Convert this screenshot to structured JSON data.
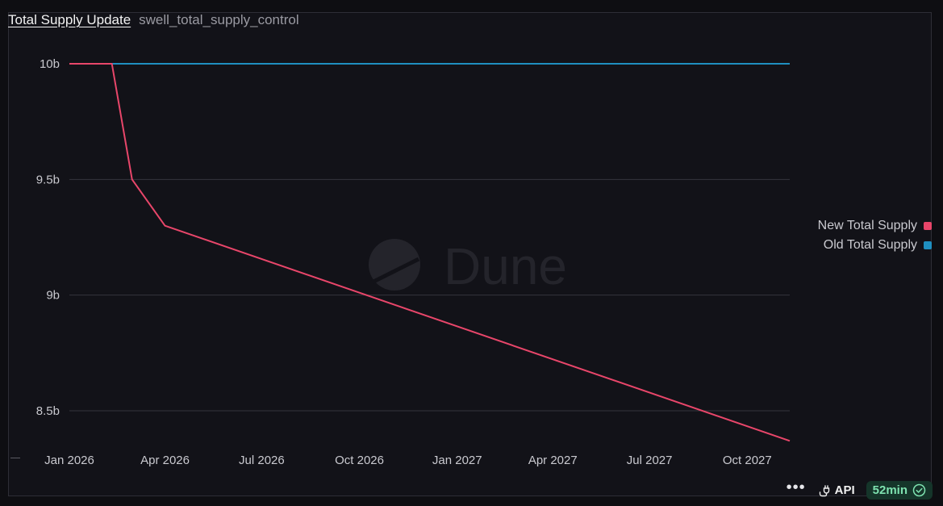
{
  "header": {
    "title": "Total Supply Update",
    "subtitle": "swell_total_supply_control"
  },
  "chart_data": {
    "type": "line",
    "x_ticks": [
      "Jan 2026",
      "Apr 2026",
      "Jul 2026",
      "Oct 2026",
      "Jan 2027",
      "Apr 2027",
      "Jul 2027",
      "Oct 2027"
    ],
    "y_ticks": [
      "8.5b",
      "9b",
      "9.5b",
      "10b"
    ],
    "ylim": [
      8.35,
      10.0
    ],
    "xlim": [
      "2026-01-01",
      "2027-11-10"
    ],
    "grid": true,
    "legend_position": "right",
    "series": [
      {
        "name": "New Total Supply",
        "color": "#e8466a",
        "points": [
          {
            "x": "2026-01-01",
            "y": 10.0
          },
          {
            "x": "2026-02-10",
            "y": 10.0
          },
          {
            "x": "2026-03-01",
            "y": 9.5
          },
          {
            "x": "2026-04-01",
            "y": 9.3
          },
          {
            "x": "2027-11-10",
            "y": 8.37
          }
        ]
      },
      {
        "name": "Old Total Supply",
        "color": "#1f8fc0",
        "points": [
          {
            "x": "2026-01-01",
            "y": 10.0
          },
          {
            "x": "2027-11-10",
            "y": 10.0
          }
        ]
      }
    ]
  },
  "legend": {
    "items": [
      {
        "label": "New Total Supply",
        "color": "#e8466a"
      },
      {
        "label": "Old Total Supply",
        "color": "#1f8fc0"
      }
    ]
  },
  "watermark": {
    "text": "Dune"
  },
  "footer": {
    "more_label": "•••",
    "api_label": "API",
    "freshness_label": "52min"
  },
  "icons": [
    "dune-logo-icon",
    "plug-icon",
    "check-circle-icon",
    "more-options-icon"
  ]
}
